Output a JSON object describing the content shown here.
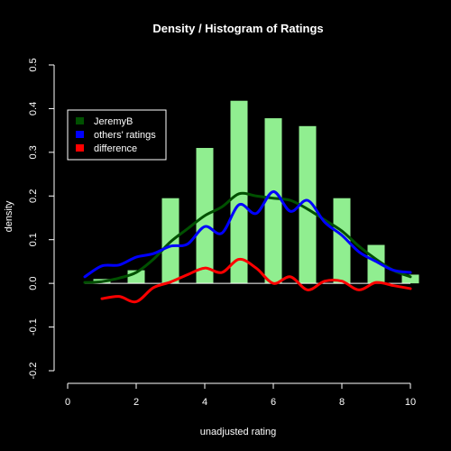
{
  "chart_data": {
    "type": "bar",
    "title": "Density / Histogram of Ratings",
    "xlabel": "unadjusted rating",
    "ylabel": "density",
    "xlim": [
      0,
      10
    ],
    "ylim": [
      -0.2,
      0.5
    ],
    "x_ticks": [
      0,
      2,
      4,
      6,
      8,
      10
    ],
    "y_ticks": [
      -0.2,
      -0.1,
      0.0,
      0.1,
      0.2,
      0.3,
      0.4,
      0.5
    ],
    "y_tick_labels": [
      "-0.2",
      "-0.1",
      "0.0",
      "0.1",
      "0.2",
      "0.3",
      "0.4",
      "0.5"
    ],
    "grid": false,
    "legend_position": "top-left",
    "histogram": {
      "color": "#90EE90",
      "bars": [
        {
          "x": 1,
          "value": 0.01
        },
        {
          "x": 2,
          "value": 0.03
        },
        {
          "x": 3,
          "value": 0.195
        },
        {
          "x": 4,
          "value": 0.31
        },
        {
          "x": 5,
          "value": 0.418
        },
        {
          "x": 6,
          "value": 0.378
        },
        {
          "x": 7,
          "value": 0.36
        },
        {
          "x": 8,
          "value": 0.195
        },
        {
          "x": 9,
          "value": 0.088
        },
        {
          "x": 10,
          "value": 0.02
        }
      ]
    },
    "series": [
      {
        "name": "JeremyB",
        "color": "#005000",
        "points": [
          [
            0.5,
            0.002
          ],
          [
            1,
            0.004
          ],
          [
            1.5,
            0.012
          ],
          [
            2,
            0.025
          ],
          [
            2.5,
            0.055
          ],
          [
            3,
            0.095
          ],
          [
            3.5,
            0.125
          ],
          [
            4,
            0.155
          ],
          [
            4.5,
            0.175
          ],
          [
            5,
            0.205
          ],
          [
            5.5,
            0.2
          ],
          [
            6,
            0.195
          ],
          [
            6.5,
            0.19
          ],
          [
            7,
            0.17
          ],
          [
            7.5,
            0.145
          ],
          [
            8,
            0.12
          ],
          [
            8.5,
            0.085
          ],
          [
            9,
            0.055
          ],
          [
            9.5,
            0.03
          ],
          [
            10,
            0.015
          ]
        ]
      },
      {
        "name": "others' ratings",
        "color": "#0000ff",
        "points": [
          [
            0.5,
            0.015
          ],
          [
            1,
            0.04
          ],
          [
            1.5,
            0.042
          ],
          [
            2,
            0.06
          ],
          [
            2.5,
            0.068
          ],
          [
            3,
            0.085
          ],
          [
            3.5,
            0.09
          ],
          [
            4,
            0.13
          ],
          [
            4.5,
            0.115
          ],
          [
            5,
            0.18
          ],
          [
            5.5,
            0.16
          ],
          [
            6,
            0.21
          ],
          [
            6.5,
            0.165
          ],
          [
            7,
            0.19
          ],
          [
            7.5,
            0.14
          ],
          [
            8,
            0.11
          ],
          [
            8.5,
            0.072
          ],
          [
            9,
            0.05
          ],
          [
            9.5,
            0.03
          ],
          [
            10,
            0.025
          ]
        ]
      },
      {
        "name": "difference",
        "color": "#ff0000",
        "points": [
          [
            1,
            -0.035
          ],
          [
            1.5,
            -0.03
          ],
          [
            2,
            -0.042
          ],
          [
            2.5,
            -0.01
          ],
          [
            3,
            0.003
          ],
          [
            3.5,
            0.02
          ],
          [
            4,
            0.035
          ],
          [
            4.5,
            0.025
          ],
          [
            5,
            0.055
          ],
          [
            5.5,
            0.035
          ],
          [
            6,
            0.0
          ],
          [
            6.5,
            0.015
          ],
          [
            7,
            -0.015
          ],
          [
            7.5,
            0.005
          ],
          [
            8,
            0.005
          ],
          [
            8.5,
            -0.015
          ],
          [
            9,
            0.002
          ],
          [
            9.5,
            -0.005
          ],
          [
            10,
            -0.012
          ]
        ]
      }
    ]
  }
}
